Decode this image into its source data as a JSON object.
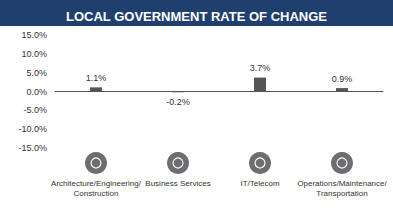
{
  "chart_data": {
    "type": "bar",
    "title": "LOCAL GOVERNMENT RATE OF CHANGE",
    "categories": [
      "Architecture/Engineering/\nConstruction",
      "Business Services",
      "IT/Telecom",
      "Operations/Maintenance/\nTransportation"
    ],
    "values": [
      1.1,
      -0.2,
      3.7,
      0.9
    ],
    "value_labels": [
      "1.1%",
      "-0.2%",
      "3.7%",
      "0.9%"
    ],
    "color": "#555555",
    "ylim": [
      -15,
      15
    ],
    "yticks": [
      {
        "value": -15,
        "label": "-15.0%"
      },
      {
        "value": -10,
        "label": "-10.0%"
      },
      {
        "value": -5,
        "label": "-5.0%"
      },
      {
        "value": 0,
        "label": "0.0%"
      },
      {
        "value": 5,
        "label": "5.0%"
      },
      {
        "value": 10,
        "label": "10.0%"
      },
      {
        "value": 15,
        "label": "15.0%"
      }
    ],
    "grid": false,
    "data_labels": true
  }
}
